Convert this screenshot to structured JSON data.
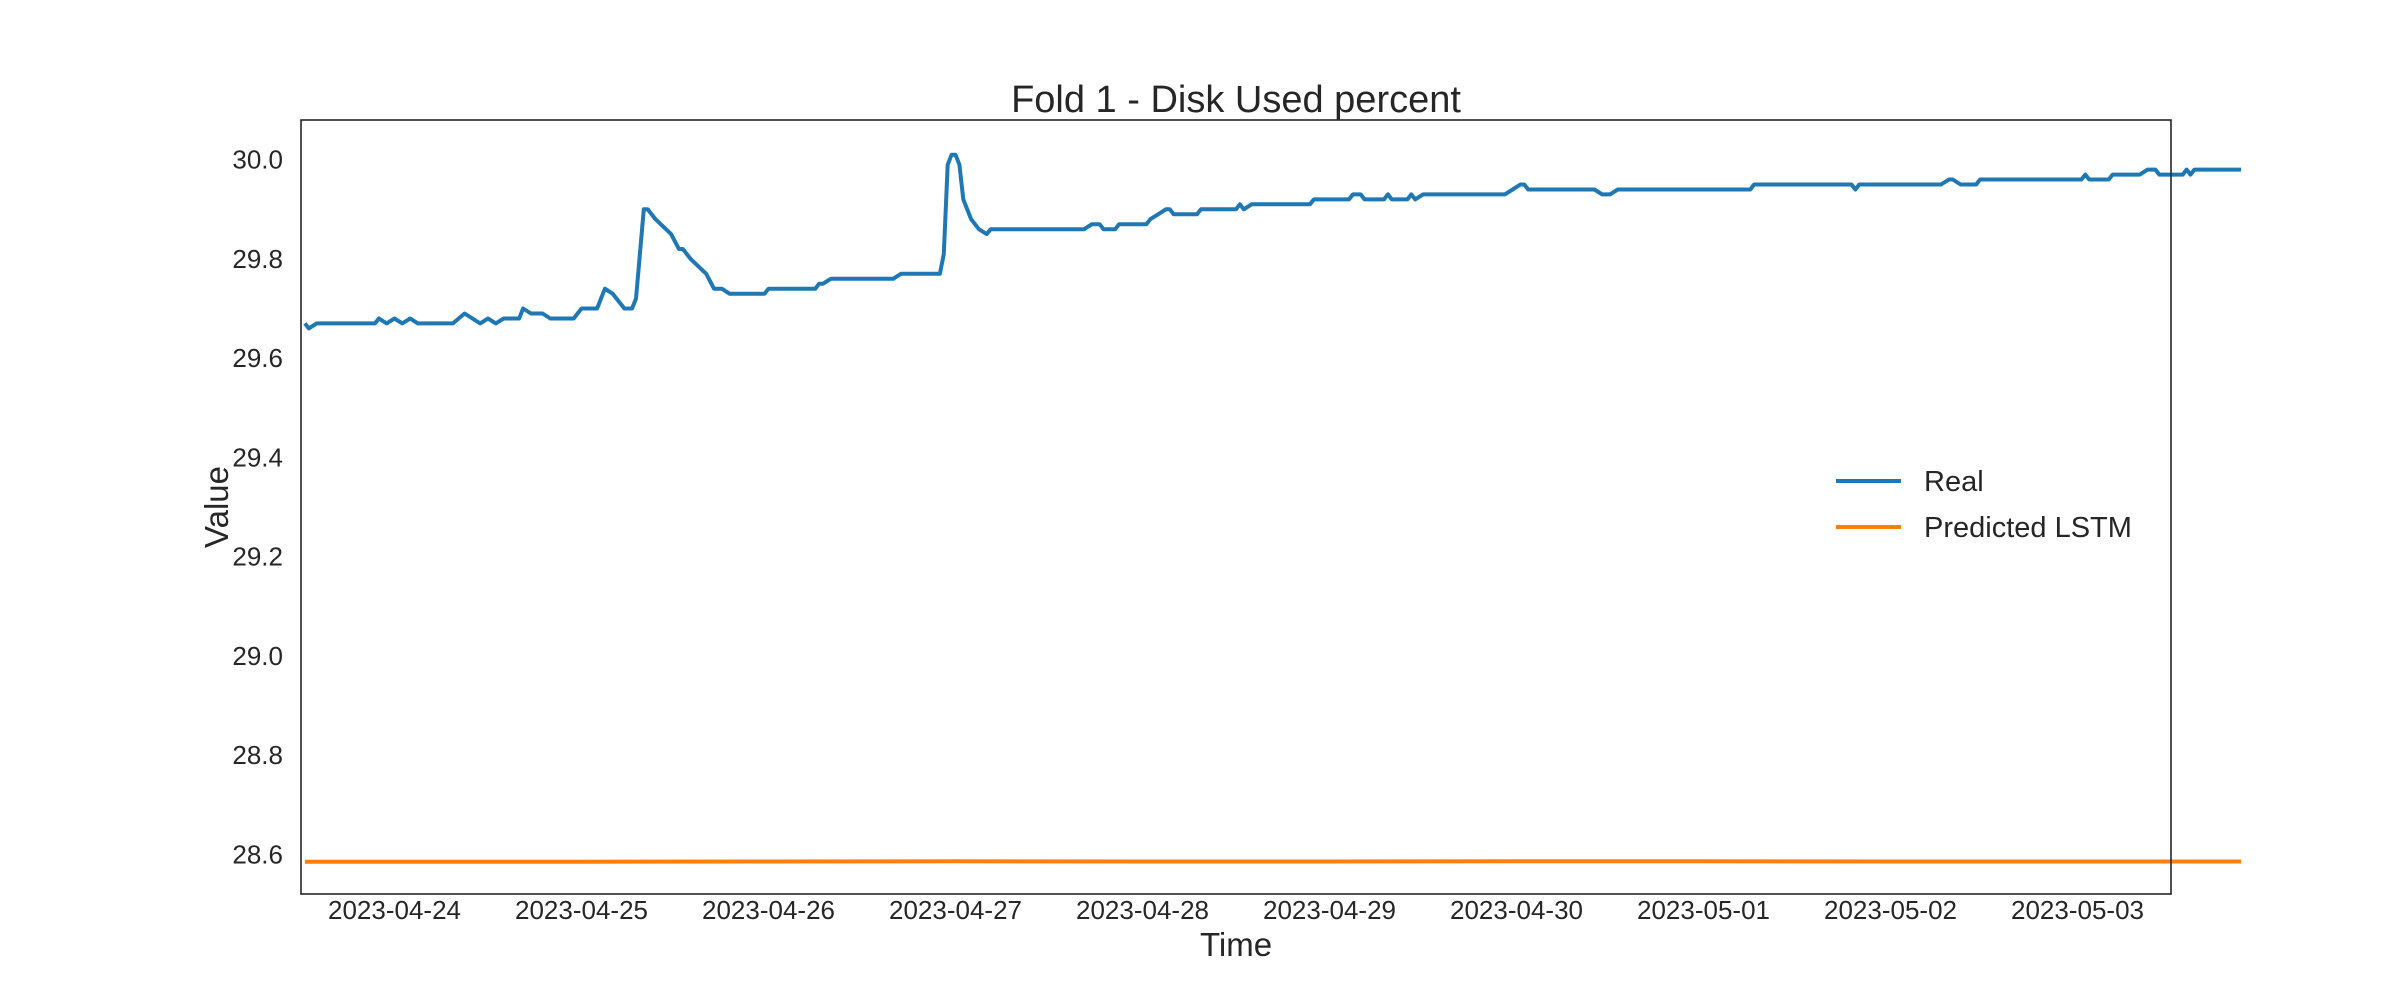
{
  "chart_data": {
    "type": "line",
    "title": "Fold 1 - Disk Used percent",
    "xlabel": "Time",
    "ylabel": "Value",
    "xlim": [
      "2023-04-23 12:00",
      "2023-05-03 12:00"
    ],
    "ylim": [
      28.52,
      30.08
    ],
    "x_ticks": [
      "2023-04-24",
      "2023-04-25",
      "2023-04-26",
      "2023-04-27",
      "2023-04-28",
      "2023-04-29",
      "2023-04-30",
      "2023-05-01",
      "2023-05-02",
      "2023-05-03"
    ],
    "y_ticks": [
      "28.6",
      "28.8",
      "29.0",
      "29.2",
      "29.4",
      "29.6",
      "29.8",
      "30.0"
    ],
    "grid": false,
    "legend": {
      "position": "center-right",
      "entries": [
        "Real",
        "Predicted LSTM"
      ]
    },
    "series": [
      {
        "name": "Real",
        "color": "#1f77b4",
        "points": [
          [
            "2023-04-23 12:30",
            29.67
          ],
          [
            "2023-04-23 13:00",
            29.66
          ],
          [
            "2023-04-23 14:00",
            29.67
          ],
          [
            "2023-04-23 21:30",
            29.67
          ],
          [
            "2023-04-23 22:00",
            29.68
          ],
          [
            "2023-04-23 23:00",
            29.67
          ],
          [
            "2023-04-24 00:00",
            29.68
          ],
          [
            "2023-04-24 01:00",
            29.67
          ],
          [
            "2023-04-24 02:00",
            29.68
          ],
          [
            "2023-04-24 03:00",
            29.67
          ],
          [
            "2023-04-24 07:30",
            29.67
          ],
          [
            "2023-04-24 09:00",
            29.69
          ],
          [
            "2023-04-24 10:00",
            29.68
          ],
          [
            "2023-04-24 11:00",
            29.67
          ],
          [
            "2023-04-24 12:00",
            29.68
          ],
          [
            "2023-04-24 13:00",
            29.67
          ],
          [
            "2023-04-24 14:00",
            29.68
          ],
          [
            "2023-04-24 16:00",
            29.68
          ],
          [
            "2023-04-24 16:30",
            29.7
          ],
          [
            "2023-04-24 17:30",
            29.69
          ],
          [
            "2023-04-24 19:00",
            29.69
          ],
          [
            "2023-04-24 20:00",
            29.68
          ],
          [
            "2023-04-24 23:00",
            29.68
          ],
          [
            "2023-04-25 00:00",
            29.7
          ],
          [
            "2023-04-25 02:00",
            29.7
          ],
          [
            "2023-04-25 03:00",
            29.74
          ],
          [
            "2023-04-25 04:00",
            29.73
          ],
          [
            "2023-04-25 05:00",
            29.71
          ],
          [
            "2023-04-25 05:30",
            29.7
          ],
          [
            "2023-04-25 06:30",
            29.7
          ],
          [
            "2023-04-25 07:00",
            29.72
          ],
          [
            "2023-04-25 08:00",
            29.9
          ],
          [
            "2023-04-25 08:30",
            29.9
          ],
          [
            "2023-04-25 09:30",
            29.88
          ],
          [
            "2023-04-25 11:30",
            29.85
          ],
          [
            "2023-04-25 12:30",
            29.82
          ],
          [
            "2023-04-25 13:00",
            29.82
          ],
          [
            "2023-04-25 14:00",
            29.8
          ],
          [
            "2023-04-25 16:00",
            29.77
          ],
          [
            "2023-04-25 17:00",
            29.74
          ],
          [
            "2023-04-25 18:00",
            29.74
          ],
          [
            "2023-04-25 19:00",
            29.73
          ],
          [
            "2023-04-25 23:30",
            29.73
          ],
          [
            "2023-04-26 00:00",
            29.74
          ],
          [
            "2023-04-26 06:00",
            29.74
          ],
          [
            "2023-04-26 06:30",
            29.75
          ],
          [
            "2023-04-26 07:00",
            29.75
          ],
          [
            "2023-04-26 08:00",
            29.76
          ],
          [
            "2023-04-26 15:00",
            29.76
          ],
          [
            "2023-04-26 16:00",
            29.76
          ],
          [
            "2023-04-26 17:00",
            29.77
          ],
          [
            "2023-04-26 22:00",
            29.77
          ],
          [
            "2023-04-26 22:30",
            29.81
          ],
          [
            "2023-04-26 23:00",
            29.99
          ],
          [
            "2023-04-26 23:30",
            30.01
          ],
          [
            "2023-04-27 00:00",
            30.01
          ],
          [
            "2023-04-27 00:30",
            29.99
          ],
          [
            "2023-04-27 01:00",
            29.92
          ],
          [
            "2023-04-27 02:00",
            29.88
          ],
          [
            "2023-04-27 03:00",
            29.86
          ],
          [
            "2023-04-27 04:00",
            29.85
          ],
          [
            "2023-04-27 04:30",
            29.86
          ],
          [
            "2023-04-27 16:30",
            29.86
          ],
          [
            "2023-04-27 17:30",
            29.87
          ],
          [
            "2023-04-27 18:30",
            29.87
          ],
          [
            "2023-04-27 19:00",
            29.86
          ],
          [
            "2023-04-27 20:30",
            29.86
          ],
          [
            "2023-04-27 21:00",
            29.87
          ],
          [
            "2023-04-28 00:30",
            29.87
          ],
          [
            "2023-04-28 01:00",
            29.88
          ],
          [
            "2023-04-28 02:00",
            29.89
          ],
          [
            "2023-04-28 03:00",
            29.9
          ],
          [
            "2023-04-28 03:30",
            29.9
          ],
          [
            "2023-04-28 04:00",
            29.89
          ],
          [
            "2023-04-28 07:00",
            29.89
          ],
          [
            "2023-04-28 07:30",
            29.9
          ],
          [
            "2023-04-28 12:00",
            29.9
          ],
          [
            "2023-04-28 12:30",
            29.91
          ],
          [
            "2023-04-28 13:00",
            29.9
          ],
          [
            "2023-04-28 14:00",
            29.91
          ],
          [
            "2023-04-28 21:30",
            29.91
          ],
          [
            "2023-04-28 22:00",
            29.92
          ],
          [
            "2023-04-29 02:30",
            29.92
          ],
          [
            "2023-04-29 03:00",
            29.93
          ],
          [
            "2023-04-29 04:00",
            29.93
          ],
          [
            "2023-04-29 04:30",
            29.92
          ],
          [
            "2023-04-29 07:00",
            29.92
          ],
          [
            "2023-04-29 07:30",
            29.93
          ],
          [
            "2023-04-29 08:00",
            29.92
          ],
          [
            "2023-04-29 10:00",
            29.92
          ],
          [
            "2023-04-29 10:30",
            29.93
          ],
          [
            "2023-04-29 11:00",
            29.92
          ],
          [
            "2023-04-29 12:00",
            29.93
          ],
          [
            "2023-04-29 22:30",
            29.93
          ],
          [
            "2023-04-29 23:30",
            29.94
          ],
          [
            "2023-04-30 00:30",
            29.95
          ],
          [
            "2023-04-30 01:00",
            29.95
          ],
          [
            "2023-04-30 01:30",
            29.94
          ],
          [
            "2023-04-30 10:00",
            29.94
          ],
          [
            "2023-04-30 11:00",
            29.93
          ],
          [
            "2023-04-30 12:00",
            29.93
          ],
          [
            "2023-04-30 13:00",
            29.94
          ],
          [
            "2023-05-01 06:00",
            29.94
          ],
          [
            "2023-05-01 06:30",
            29.95
          ],
          [
            "2023-05-01 19:00",
            29.95
          ],
          [
            "2023-05-01 19:30",
            29.94
          ],
          [
            "2023-05-01 20:00",
            29.95
          ],
          [
            "2023-05-02 06:30",
            29.95
          ],
          [
            "2023-05-02 07:30",
            29.96
          ],
          [
            "2023-05-02 08:00",
            29.96
          ],
          [
            "2023-05-02 09:00",
            29.95
          ],
          [
            "2023-05-02 11:00",
            29.95
          ],
          [
            "2023-05-02 11:30",
            29.96
          ],
          [
            "2023-05-03 00:30",
            29.96
          ],
          [
            "2023-05-03 01:00",
            29.97
          ],
          [
            "2023-05-03 01:30",
            29.96
          ],
          [
            "2023-05-03 04:00",
            29.96
          ],
          [
            "2023-05-03 04:30",
            29.97
          ],
          [
            "2023-05-03 08:00",
            29.97
          ],
          [
            "2023-05-03 09:00",
            29.98
          ],
          [
            "2023-05-03 10:00",
            29.98
          ],
          [
            "2023-05-03 10:30",
            29.97
          ],
          [
            "2023-05-03 13:30",
            29.97
          ],
          [
            "2023-05-03 14:00",
            29.98
          ],
          [
            "2023-05-03 14:30",
            29.97
          ],
          [
            "2023-05-03 15:00",
            29.98
          ],
          [
            "2023-05-03 21:00",
            29.98
          ]
        ]
      },
      {
        "name": "Predicted LSTM",
        "color": "#ff7f0e",
        "points": [
          [
            "2023-04-23 12:30",
            28.585
          ],
          [
            "2023-04-25 00:00",
            28.585
          ],
          [
            "2023-04-26 00:00",
            28.5855
          ],
          [
            "2023-04-27 00:00",
            28.586
          ],
          [
            "2023-04-28 00:00",
            28.5855
          ],
          [
            "2023-04-29 00:00",
            28.5855
          ],
          [
            "2023-04-30 00:00",
            28.586
          ],
          [
            "2023-05-01 00:00",
            28.586
          ],
          [
            "2023-05-02 00:00",
            28.5855
          ],
          [
            "2023-05-03 21:00",
            28.5855
          ]
        ]
      }
    ]
  }
}
